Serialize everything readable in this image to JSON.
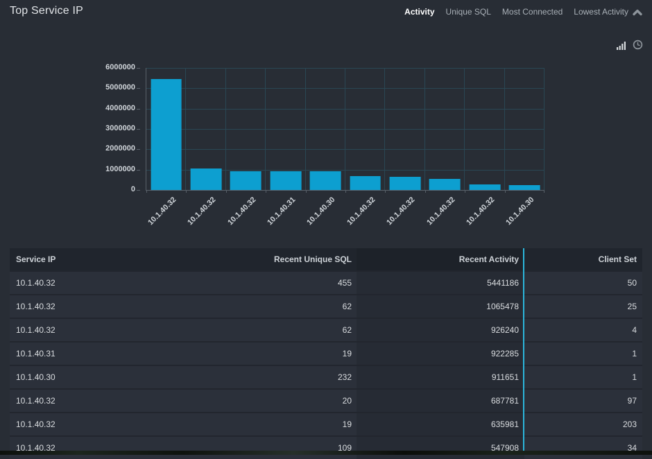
{
  "panel": {
    "title": "Top Service IP"
  },
  "tabs": [
    {
      "label": "Activity",
      "active": true
    },
    {
      "label": "Unique SQL",
      "active": false
    },
    {
      "label": "Most Connected",
      "active": false
    },
    {
      "label": "Lowest Activity",
      "active": false
    }
  ],
  "toolbar": {
    "icons": [
      {
        "name": "bar-chart-icon"
      },
      {
        "name": "clock-icon"
      }
    ]
  },
  "chart_data": {
    "type": "bar",
    "title": "",
    "xlabel": "",
    "ylabel": "",
    "categories": [
      "10.1.40.32",
      "10.1.40.32",
      "10.1.40.32",
      "10.1.40.31",
      "10.1.40.30",
      "10.1.40.32",
      "10.1.40.32",
      "10.1.40.32",
      "10.1.40.32",
      "10.1.40.30"
    ],
    "values": [
      5441186,
      1065478,
      926240,
      922285,
      911651,
      687781,
      635981,
      547908,
      280000,
      240000
    ],
    "ylim": [
      0,
      6000000
    ],
    "yticks": [
      0,
      1000000,
      2000000,
      3000000,
      4000000,
      5000000,
      6000000
    ],
    "bar_color": "#0d9fd0",
    "grid": true,
    "legend": "none"
  },
  "table": {
    "columns": [
      "Service IP",
      "Recent Unique SQL",
      "Recent Activity",
      "Client Set"
    ],
    "sorted_column": "Recent Activity",
    "rows": [
      [
        "10.1.40.32",
        "455",
        "5441186",
        "50"
      ],
      [
        "10.1.40.32",
        "62",
        "1065478",
        "25"
      ],
      [
        "10.1.40.32",
        "62",
        "926240",
        "4"
      ],
      [
        "10.1.40.31",
        "19",
        "922285",
        "1"
      ],
      [
        "10.1.40.30",
        "232",
        "911651",
        "1"
      ],
      [
        "10.1.40.32",
        "20",
        "687781",
        "97"
      ],
      [
        "10.1.40.32",
        "19",
        "635981",
        "203"
      ],
      [
        "10.1.40.32",
        "109",
        "547908",
        "34"
      ]
    ]
  },
  "colors": {
    "background": "#282d35",
    "bar": "#0d9fd0",
    "accent_cyan": "#2bb7dc",
    "gridline": "#2a4754"
  }
}
